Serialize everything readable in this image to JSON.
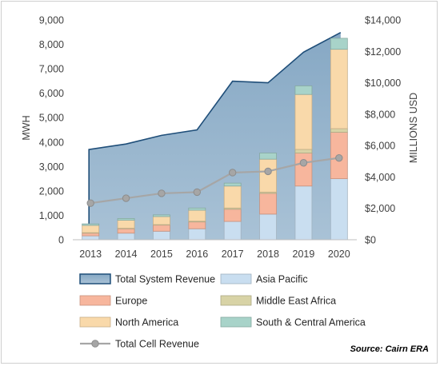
{
  "chart_data": {
    "type": "bar",
    "subtype": "stacked bar with area and line overlays",
    "categories": [
      "2013",
      "2014",
      "2015",
      "2016",
      "2017",
      "2018",
      "2019",
      "2020"
    ],
    "left_axis": {
      "label": "MWH",
      "range": [
        0,
        9000
      ],
      "ticks": [
        "0",
        "1,000",
        "2,000",
        "3,000",
        "4,000",
        "5,000",
        "6,000",
        "7,000",
        "8,000",
        "9,000"
      ]
    },
    "right_axis": {
      "label": "MILLIONS USD",
      "range": [
        0,
        14000
      ],
      "ticks": [
        "$0",
        "$2,000",
        "$4,000",
        "$6,000",
        "$8,000",
        "$10,000",
        "$12,000",
        "$14,000"
      ]
    },
    "area_series": {
      "name": "Total System Revenue",
      "axis": "right",
      "color": "#93b3cc",
      "values": [
        5750,
        6100,
        6650,
        7000,
        10100,
        10000,
        11950,
        13200
      ]
    },
    "bar_series": [
      {
        "name": "Asia Pacific",
        "axis": "left",
        "color": "#c9def0",
        "values": [
          160,
          270,
          350,
          450,
          750,
          1050,
          2200,
          2500
        ]
      },
      {
        "name": "Europe",
        "axis": "left",
        "color": "#f7b69d",
        "values": [
          110,
          180,
          250,
          280,
          500,
          850,
          1350,
          1900
        ]
      },
      {
        "name": "Middle East Africa",
        "axis": "left",
        "color": "#d8d3a6",
        "values": [
          20,
          20,
          20,
          30,
          50,
          50,
          150,
          150
        ]
      },
      {
        "name": "North America",
        "axis": "left",
        "color": "#f9d9aa",
        "values": [
          300,
          330,
          330,
          450,
          900,
          1350,
          2250,
          3250
        ]
      },
      {
        "name": "South & Central America",
        "axis": "left",
        "color": "#a8d3c9",
        "values": [
          60,
          70,
          70,
          90,
          120,
          250,
          350,
          450
        ]
      }
    ],
    "line_series": {
      "name": "Total Cell Revenue",
      "axis": "left",
      "color": "#a6a6a6",
      "values": [
        1500,
        1700,
        1900,
        1950,
        2750,
        2800,
        3150,
        3350
      ]
    },
    "grid": false,
    "legend_position": "bottom"
  },
  "source_note": "Source: Cairn ERA"
}
